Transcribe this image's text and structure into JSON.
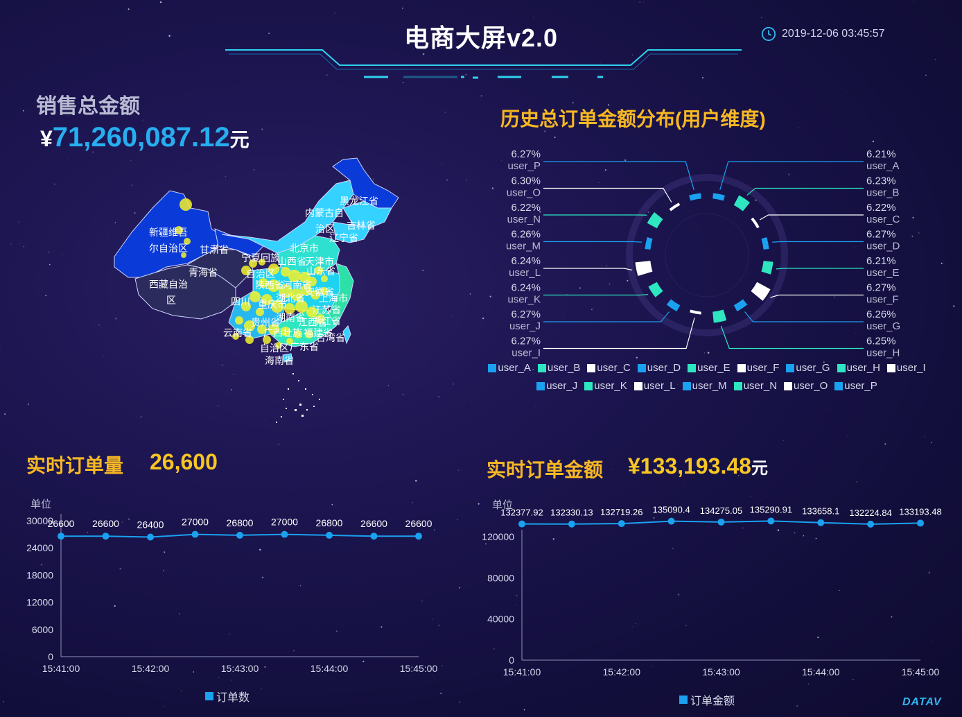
{
  "header": {
    "title": "电商大屏v2.0",
    "datetime": "2019-12-06 03:45:57"
  },
  "sales": {
    "label": "销售总金额",
    "currency": "¥",
    "value": "71,260,087.12",
    "unit": "元"
  },
  "map": {
    "provinces": [
      "黑龙江省",
      "内蒙古自",
      "治区",
      "吉林省",
      "辽宁省",
      "新疆维吾",
      "尔自治区",
      "甘肃省",
      "宁夏回族",
      "北京市",
      "天津市",
      "山西省",
      "山东省",
      "青海省",
      "自治区",
      "陕西省",
      "河南省",
      "西藏自治",
      "区",
      "四川",
      "重庆市",
      "湖北省",
      "安徽省",
      "上海市",
      "江苏省",
      "浙江省",
      "贵州省",
      "湖南省",
      "江西省",
      "福建省",
      "云南省",
      "广西壮族",
      "自治区",
      "广东省",
      "台湾省",
      "海南省"
    ]
  },
  "pie_section": {
    "title": "历史总订单金额分布(用户维度)"
  },
  "orders_section": {
    "title": "实时订单量",
    "value": "26,600",
    "unit_label": "单位",
    "legend": "订单数"
  },
  "amount_section": {
    "title": "实时订单金额",
    "currency": "¥",
    "value": "133,193.48",
    "unit": "元",
    "unit_label": "单位",
    "legend": "订单金额"
  },
  "footer": {
    "brand": "DATAV"
  },
  "colors": {
    "cyan": "#1aa1f0",
    "teal": "#2ee6c0",
    "white": "#ffffff",
    "gold": "#f7b823",
    "map_light": "#35d2ff",
    "map_dark": "#0a3ad8",
    "map_navy": "#2b2b5e",
    "dot": "#f3f22a"
  },
  "chart_data": [
    {
      "type": "pie",
      "title": "历史总订单金额分布(用户维度)",
      "slices": [
        {
          "name": "user_A",
          "percent": "6.21%",
          "color": "#1aa1f0"
        },
        {
          "name": "user_B",
          "percent": "6.23%",
          "color": "#2ee6c0"
        },
        {
          "name": "user_C",
          "percent": "6.22%",
          "color": "#ffffff"
        },
        {
          "name": "user_D",
          "percent": "6.27%",
          "color": "#1aa1f0"
        },
        {
          "name": "user_E",
          "percent": "6.21%",
          "color": "#2ee6c0"
        },
        {
          "name": "user_F",
          "percent": "6.27%",
          "color": "#ffffff"
        },
        {
          "name": "user_G",
          "percent": "6.26%",
          "color": "#1aa1f0"
        },
        {
          "name": "user_H",
          "percent": "6.25%",
          "color": "#2ee6c0"
        },
        {
          "name": "user_I",
          "percent": "6.27%",
          "color": "#ffffff"
        },
        {
          "name": "user_J",
          "percent": "6.27%",
          "color": "#1aa1f0"
        },
        {
          "name": "user_K",
          "percent": "6.24%",
          "color": "#2ee6c0"
        },
        {
          "name": "user_L",
          "percent": "6.24%",
          "color": "#ffffff"
        },
        {
          "name": "user_M",
          "percent": "6.26%",
          "color": "#1aa1f0"
        },
        {
          "name": "user_N",
          "percent": "6.22%",
          "color": "#2ee6c0"
        },
        {
          "name": "user_O",
          "percent": "6.30%",
          "color": "#ffffff"
        },
        {
          "name": "user_P",
          "percent": "6.27%",
          "color": "#1aa1f0"
        }
      ],
      "legend_placement": "bottom"
    },
    {
      "type": "line",
      "title": "实时订单量",
      "ylabel": "单位",
      "x_ticks": [
        "15:41:00",
        "15:42:00",
        "15:43:00",
        "15:44:00",
        "15:45:00"
      ],
      "y_ticks": [
        "0",
        "6000",
        "12000",
        "18000",
        "24000",
        "30000"
      ],
      "ylim": [
        0,
        30000
      ],
      "series": [
        {
          "name": "订单数",
          "values": [
            26600,
            26600,
            26400,
            27000,
            26800,
            27000,
            26800,
            26600,
            26600
          ],
          "labels": [
            "26600",
            "26600",
            "26400",
            "27000",
            "26800",
            "27000",
            "26800",
            "26600",
            "26600"
          ]
        }
      ],
      "grid": false,
      "legend_placement": "bottom"
    },
    {
      "type": "line",
      "title": "实时订单金额",
      "ylabel": "单位",
      "x_ticks": [
        "15:41:00",
        "15:42:00",
        "15:43:00",
        "15:44:00",
        "15:45:00"
      ],
      "y_ticks": [
        "0",
        "40000",
        "80000",
        "120000"
      ],
      "ylim": [
        0,
        130000
      ],
      "series": [
        {
          "name": "订单金额",
          "values": [
            132377.92,
            132330.13,
            132719.26,
            135090.4,
            134275.05,
            135290.91,
            133658.1,
            132224.84,
            133193.48
          ],
          "labels": [
            "132377.92",
            "132330.13",
            "132719.26",
            "135090.4",
            "134275.05",
            "135290.91",
            "133658.1",
            "132224.84",
            "133193.48"
          ]
        }
      ],
      "grid": false,
      "legend_placement": "bottom"
    }
  ]
}
